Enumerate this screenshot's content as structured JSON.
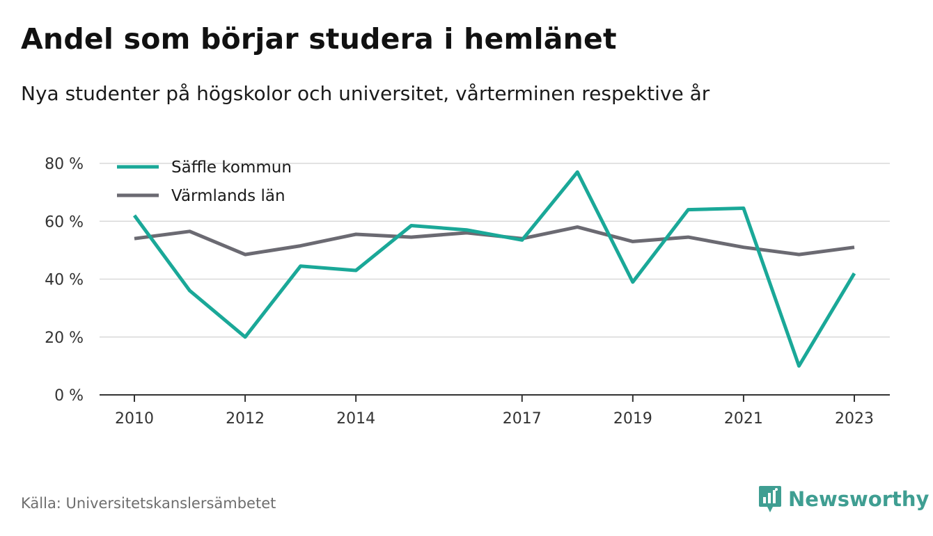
{
  "title": "Andel som börjar studera i hemlänet",
  "subtitle": "Nya studenter på högskolor och universitet, vårterminen respektive år",
  "source": "Källa: Universitetskanslersämbetet",
  "brand": "Newsworthy",
  "colors": {
    "accent": "#1aa898",
    "secondary": "#6b6a72",
    "grid": "#d9d9d9",
    "brand": "#3f9e92"
  },
  "chart_data": {
    "type": "line",
    "x": [
      2010,
      2011,
      2012,
      2013,
      2014,
      2015,
      2016,
      2017,
      2018,
      2019,
      2020,
      2021,
      2022,
      2023
    ],
    "xticks": [
      "2010",
      "2012",
      "2014",
      "2017",
      "2019",
      "2021",
      "2023"
    ],
    "yticks": [
      "0 %",
      "20 %",
      "40 %",
      "60 %",
      "80 %"
    ],
    "ylim": [
      0,
      80
    ],
    "grid": true,
    "legend": "top-left",
    "series": [
      {
        "name": "Säffle kommun",
        "color": "#1aa898",
        "values": [
          62,
          36,
          20,
          44.5,
          43,
          58.5,
          57,
          53.5,
          77,
          39,
          64,
          64.5,
          10,
          42
        ]
      },
      {
        "name": "Värmlands län",
        "color": "#6b6a72",
        "values": [
          54,
          56.5,
          48.5,
          51.5,
          55.5,
          54.5,
          56,
          54,
          58,
          53,
          54.5,
          51,
          48.5,
          51
        ]
      }
    ]
  }
}
